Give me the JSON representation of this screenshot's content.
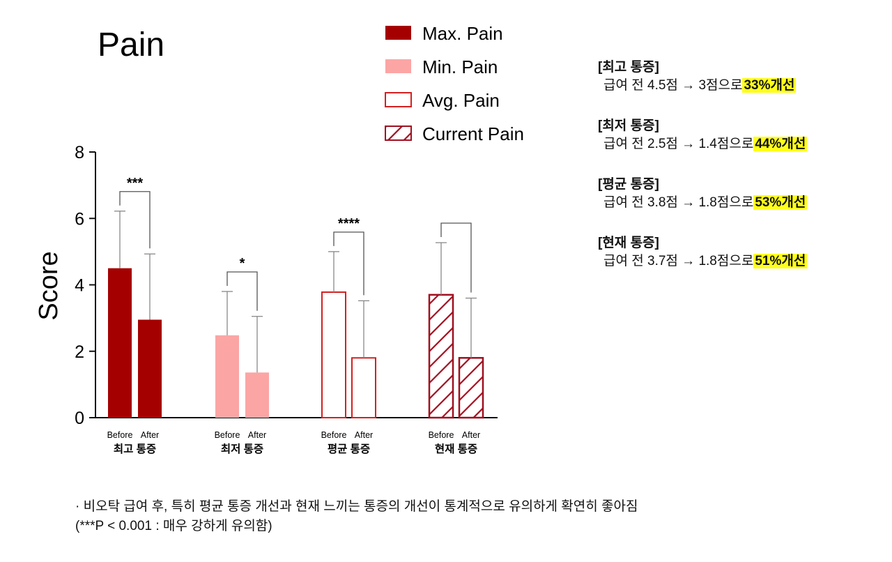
{
  "chart_data": {
    "type": "bar",
    "title": "Pain",
    "ylabel": "Score",
    "ylim": [
      0,
      8
    ],
    "yticks": [
      "0",
      "2",
      "4",
      "6",
      "8"
    ],
    "group_labels": [
      "최고 통증",
      "최저 통증",
      "평균 통증",
      "현재 통증"
    ],
    "bar_labels": [
      "Before",
      "After"
    ],
    "series": [
      {
        "name": "Max. Pain",
        "style": "solid",
        "color": "#a50000",
        "values": [
          4.5,
          2.95
        ],
        "errors": [
          6.22,
          4.93
        ],
        "significance": "***"
      },
      {
        "name": "Min. Pain",
        "style": "solid",
        "color": "#fca5a5",
        "values": [
          2.48,
          1.36
        ],
        "errors": [
          3.8,
          3.05
        ],
        "significance": "*"
      },
      {
        "name": "Avg. Pain",
        "style": "outline",
        "color": "#d42020",
        "values": [
          3.78,
          1.8
        ],
        "errors": [
          5.0,
          3.52
        ],
        "significance": "****"
      },
      {
        "name": "Current Pain",
        "style": "hatch",
        "color": "#a01020",
        "values": [
          3.7,
          1.8
        ],
        "errors": [
          5.27,
          3.6
        ],
        "significance": ""
      }
    ],
    "legend_position": "top-center"
  },
  "summary": [
    {
      "head": "[최고 통증]",
      "text": "급여 전 4.5점 → 3점으로",
      "highlight": "33%개선"
    },
    {
      "head": "[최저 통증]",
      "text": "급여 전 2.5점 → 1.4점으로",
      "highlight": "44%개선"
    },
    {
      "head": "[평균 통증]",
      "text": "급여 전 3.8점 → 1.8점으로",
      "highlight": "53%개선"
    },
    {
      "head": "[현재 통증]",
      "text": "급여 전 3.7점 → 1.8점으로",
      "highlight": "51%개선"
    }
  ],
  "footnote": {
    "line1": "· 비오탁 급여 후, 특히 평균 통증 개선과 현재 느끼는 통증의 개선이 통계적으로 유의하게 확연히 좋아짐",
    "line2": "(***P < 0.001 : 매우 강하게 유의함)"
  }
}
